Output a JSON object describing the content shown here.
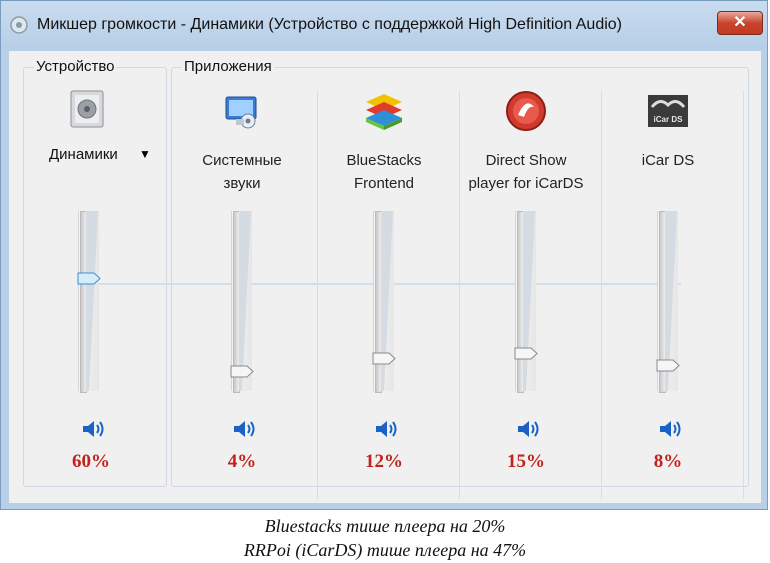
{
  "window": {
    "title": "Микшер громкости - Динамики (Устройство с поддержкой High Definition Audio)",
    "close_label": "✕"
  },
  "device_group": {
    "label": "Устройство",
    "device_name": "Динамики",
    "dropdown_arrow": "▼",
    "volume": "60%",
    "level": 0.6
  },
  "apps_group": {
    "label": "Приложения"
  },
  "apps": [
    {
      "line1": "Системные",
      "line2": "звуки",
      "volume": "4%",
      "level": 0.04,
      "icon": "system-sounds-icon"
    },
    {
      "line1": "BlueStacks",
      "line2": "Frontend",
      "volume": "12%",
      "level": 0.12,
      "icon": "bluestacks-icon"
    },
    {
      "line1": "Direct Show",
      "line2": "player for iCarDS",
      "volume": "15%",
      "level": 0.15,
      "icon": "directshow-icon"
    },
    {
      "line1": "iCar DS",
      "line2": "",
      "volume": "8%",
      "level": 0.08,
      "icon": "icards-icon",
      "icon_text": "iCar DS"
    }
  ],
  "caption": {
    "line1": "Bluestacks тише плеера на 20%",
    "line2": "RRPoi (iCarDS) тише плеера на 47%"
  },
  "colors": {
    "percent": "#c0231d",
    "speaker": "#1a63c4"
  }
}
